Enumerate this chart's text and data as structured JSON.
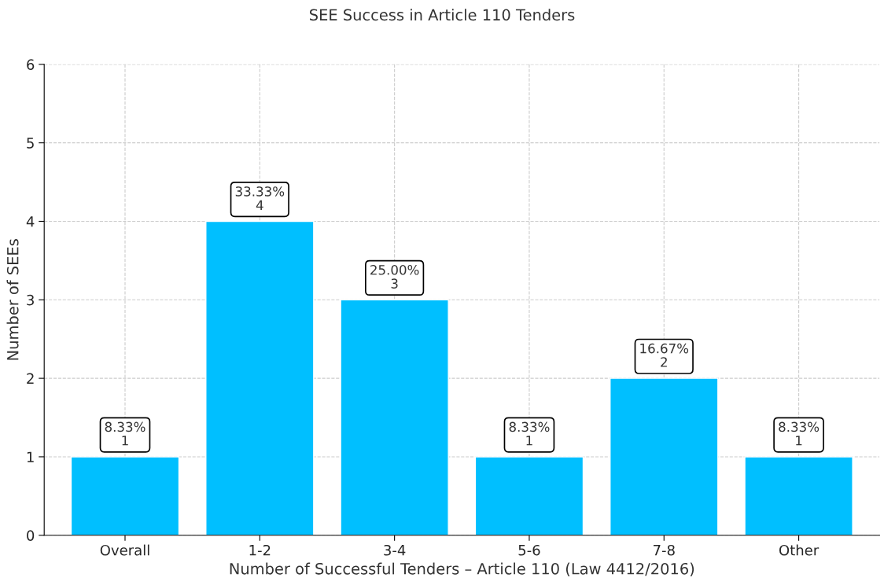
{
  "chart_data": {
    "type": "bar",
    "title": "SEE Success in Article 110 Tenders",
    "xlabel": "Number of Successful Tenders – Article 110 (Law 4412/2016)",
    "ylabel": "Number of SEEs",
    "categories": [
      "Overall",
      "1-2",
      "3-4",
      "5-6",
      "7-8",
      "Other"
    ],
    "values": [
      1,
      4,
      3,
      1,
      2,
      1
    ],
    "value_labels": [
      "8.33%\n1",
      "33.33%\n4",
      "25.00%\n3",
      "8.33%\n1",
      "16.67%\n2",
      "8.33%\n1"
    ],
    "color": "#00bfff",
    "ylim": [
      0,
      6
    ],
    "yticks": [
      0,
      1,
      2,
      3,
      4,
      5,
      6
    ],
    "grid": true
  }
}
